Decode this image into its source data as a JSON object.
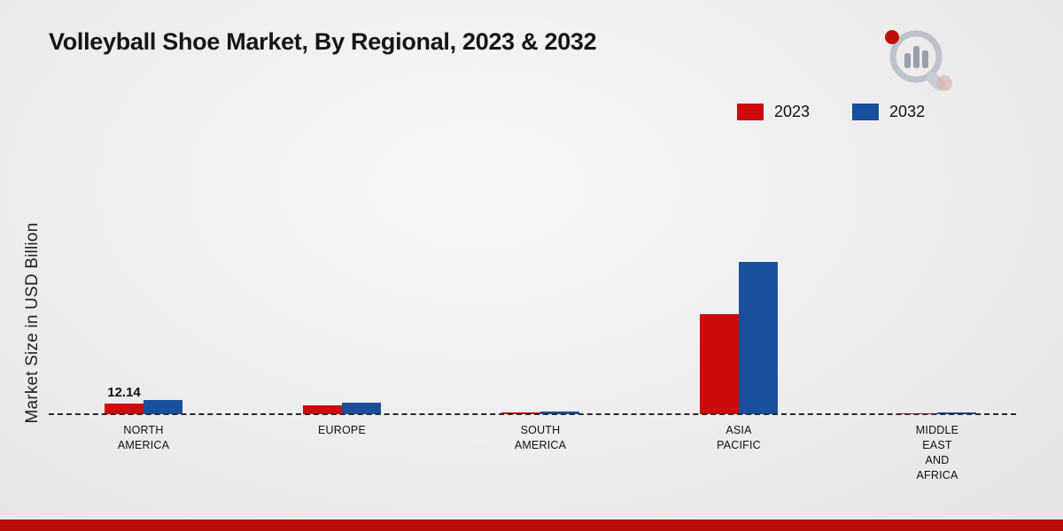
{
  "page": {
    "title": "Volleyball Shoe Market, By Regional, 2023 & 2032",
    "ylabel": "Market Size in USD Billion"
  },
  "chart_data": {
    "type": "bar",
    "title": "Volleyball Shoe Market, By Regional, 2023 & 2032",
    "xlabel": "",
    "ylabel": "Market Size in USD Billion",
    "categories": [
      "NORTH\nAMERICA",
      "EUROPE",
      "SOUTH\nAMERICA",
      "ASIA\nPACIFIC",
      "MIDDLE\nEAST\nAND\nAFRICA"
    ],
    "series": [
      {
        "name": "2023",
        "color": "#cc0c0c",
        "values": [
          12.14,
          10.5,
          1.8,
          113,
          0.9
        ]
      },
      {
        "name": "2032",
        "color": "#1a4f9c",
        "values": [
          15.6,
          13.2,
          3.2,
          172,
          1.8
        ]
      }
    ],
    "ylim": [
      0,
      360
    ],
    "grid": false,
    "legend_position": "top-right",
    "baseline_style": "dashed",
    "annotations": [
      {
        "series": "2023",
        "category_index": 0,
        "text": "12.14"
      }
    ]
  },
  "legend": {
    "items": [
      {
        "label": "2023",
        "color": "#cc0c0c"
      },
      {
        "label": "2032",
        "color": "#1a4f9c"
      }
    ]
  },
  "footer": {
    "bar_color": "#b90d0d"
  },
  "logo": {
    "name": "market-research-logo"
  }
}
